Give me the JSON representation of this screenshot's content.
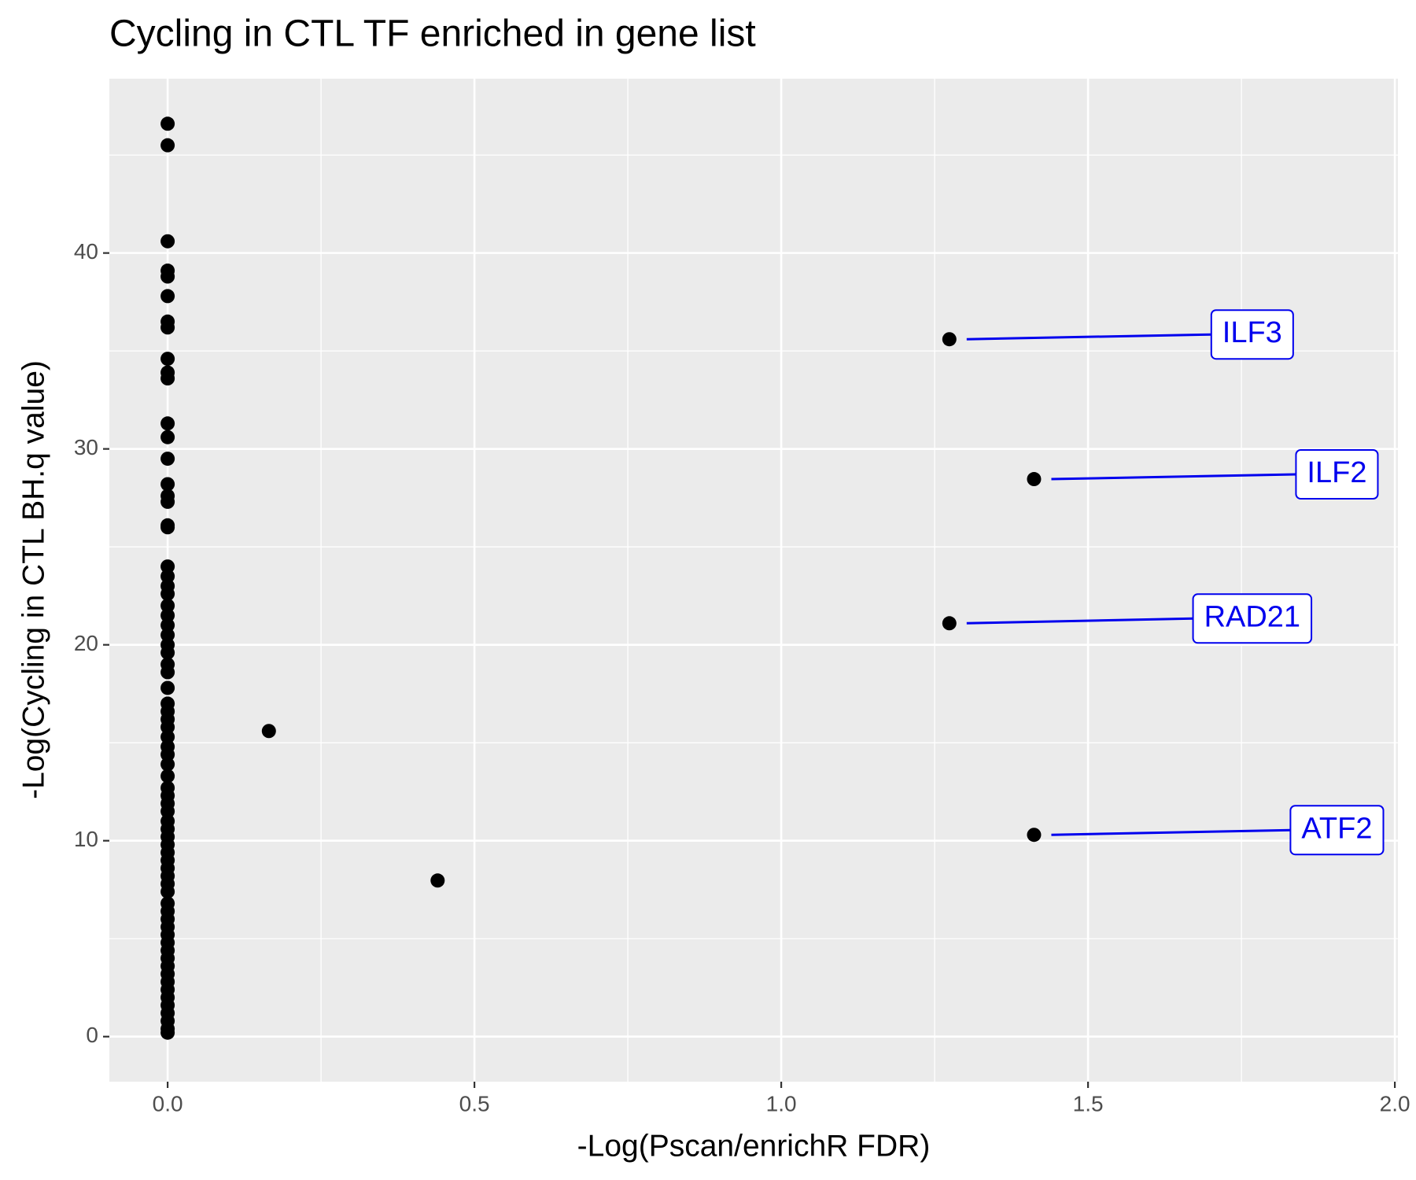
{
  "chart_data": {
    "type": "scatter",
    "title": "Cycling in CTL TF enriched in gene list",
    "xlabel": "-Log(Pscan/enrichR FDR)",
    "ylabel": "-Log(Cycling in CTL BH.q value)",
    "xlim": [
      -0.095,
      2.005
    ],
    "ylim": [
      -2.3,
      48.9
    ],
    "xticks": [
      {
        "value": 0,
        "label": "0.0"
      },
      {
        "value": 0.5,
        "label": "0.5"
      },
      {
        "value": 1,
        "label": "1.0"
      },
      {
        "value": 1.5,
        "label": "1.5"
      },
      {
        "value": 2,
        "label": "2.0"
      }
    ],
    "yticks": [
      0,
      10,
      20,
      30,
      40
    ],
    "xminorticks": [
      0.25,
      0.75,
      1.25,
      1.75
    ],
    "yminorticks": [
      5,
      15,
      25,
      35,
      45
    ],
    "grid": true,
    "color": "#000000",
    "label_color": "#0000ee",
    "series": [
      {
        "x": [
          1.274,
          1.412,
          1.274,
          1.412
        ],
        "y": [
          35.6,
          28.46,
          21.1,
          10.3
        ],
        "labels": [
          "ILF3",
          "ILF2",
          "RAD21",
          "ATF2"
        ]
      },
      {
        "x": [
          0.165,
          0.44,
          0,
          0,
          0,
          0,
          0,
          0,
          0,
          0,
          0,
          0,
          0,
          0,
          0,
          0,
          0,
          0,
          0,
          0,
          0,
          0,
          0,
          0,
          0,
          0,
          0,
          0,
          0,
          0,
          0,
          0,
          0,
          0,
          0,
          0,
          0,
          0,
          0,
          0,
          0,
          0,
          0,
          0,
          0,
          0,
          0,
          0,
          0,
          0,
          0,
          0,
          0,
          0,
          0,
          0,
          0,
          0,
          0,
          0,
          0,
          0,
          0,
          0,
          0,
          0,
          0,
          0,
          0,
          0,
          0,
          0,
          0,
          0,
          0
        ],
        "y": [
          15.6,
          7.97,
          46.6,
          45.5,
          40.6,
          39.1,
          38.8,
          37.8,
          36.5,
          36.2,
          34.6,
          33.9,
          33.6,
          31.3,
          30.6,
          29.5,
          28.2,
          27.6,
          27.3,
          26.1,
          26.0,
          24.0,
          23.5,
          23.0,
          22.6,
          22.0,
          21.5,
          21.0,
          20.5,
          20.0,
          19.6,
          19.0,
          18.6,
          17.8,
          17.0,
          16.6,
          16.2,
          15.8,
          15.3,
          14.8,
          14.4,
          13.9,
          13.3,
          12.7,
          12.3,
          11.9,
          11.5,
          11.0,
          10.6,
          10.2,
          9.8,
          9.4,
          9.0,
          8.6,
          8.2,
          7.8,
          7.4,
          6.8,
          6.4,
          6.0,
          5.6,
          5.2,
          4.8,
          4.4,
          4.0,
          3.6,
          3.2,
          2.8,
          2.4,
          2.0,
          1.6,
          1.2,
          0.8,
          0.4,
          0.2
        ]
      }
    ]
  }
}
